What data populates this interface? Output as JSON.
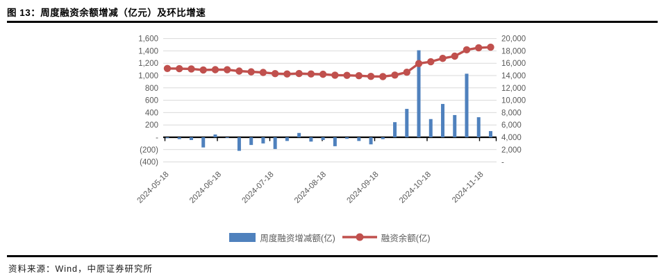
{
  "figure": {
    "title": "图 13：周度融资余额增减（亿元）及环比增速",
    "source_label": "资料来源：Wind，中原证券研究所"
  },
  "legend": {
    "bar_label": "周度融资增减额(亿)",
    "line_label": "融资余额(亿)"
  },
  "colors": {
    "bar": "#4F81BD",
    "line": "#C0504D",
    "grid": "#D9D9D9",
    "axis_text": "#595959",
    "zero_axis": "#000000"
  },
  "chart_data": {
    "type": "bar+line combo, dual axis",
    "x_unit": "week index (weekly data)",
    "x": [
      1,
      2,
      3,
      4,
      5,
      6,
      7,
      8,
      9,
      10,
      11,
      12,
      13,
      14,
      15,
      16,
      17,
      18,
      19,
      20,
      21,
      22,
      23,
      24,
      25,
      26,
      27,
      28
    ],
    "x_tick_labels": [
      "2024-05-18",
      "2024-06-18",
      "2024-07-18",
      "2024-08-18",
      "2024-09-18",
      "2024-10-18",
      "2024-11-18"
    ],
    "series": [
      {
        "name": "周度融资增减额(亿)",
        "type": "bar",
        "axis": "left",
        "values": [
          -15,
          -30,
          -45,
          -165,
          45,
          -5,
          -220,
          -125,
          -100,
          -190,
          -60,
          70,
          -70,
          -45,
          -145,
          -25,
          -60,
          -115,
          -30,
          245,
          460,
          1410,
          295,
          540,
          360,
          1030,
          325,
          100
        ]
      },
      {
        "name": "融资余额(亿)",
        "type": "line",
        "axis": "right",
        "values": [
          15150,
          15120,
          15075,
          14910,
          14955,
          14950,
          14730,
          14605,
          14505,
          14315,
          14255,
          14325,
          14255,
          14210,
          14065,
          14040,
          13980,
          13865,
          13835,
          14080,
          14540,
          15950,
          16245,
          16785,
          17145,
          18175,
          18500,
          18600
        ]
      }
    ],
    "left_axis": {
      "min": -400,
      "max": 1600,
      "tick_step": 200,
      "tick_labels": [
        "1,600",
        "1,400",
        "1,200",
        "1,000",
        "800",
        "600",
        "400",
        "200",
        "-",
        "(200)",
        "(400)"
      ]
    },
    "right_axis": {
      "min": 0,
      "max": 20000,
      "tick_step": 2000,
      "tick_labels": [
        "20,000",
        "18,000",
        "16,000",
        "14,000",
        "12,000",
        "10,000",
        "8,000",
        "6,000",
        "4,000",
        "2,000",
        "-"
      ]
    },
    "grid": true,
    "legend_position": "bottom"
  }
}
